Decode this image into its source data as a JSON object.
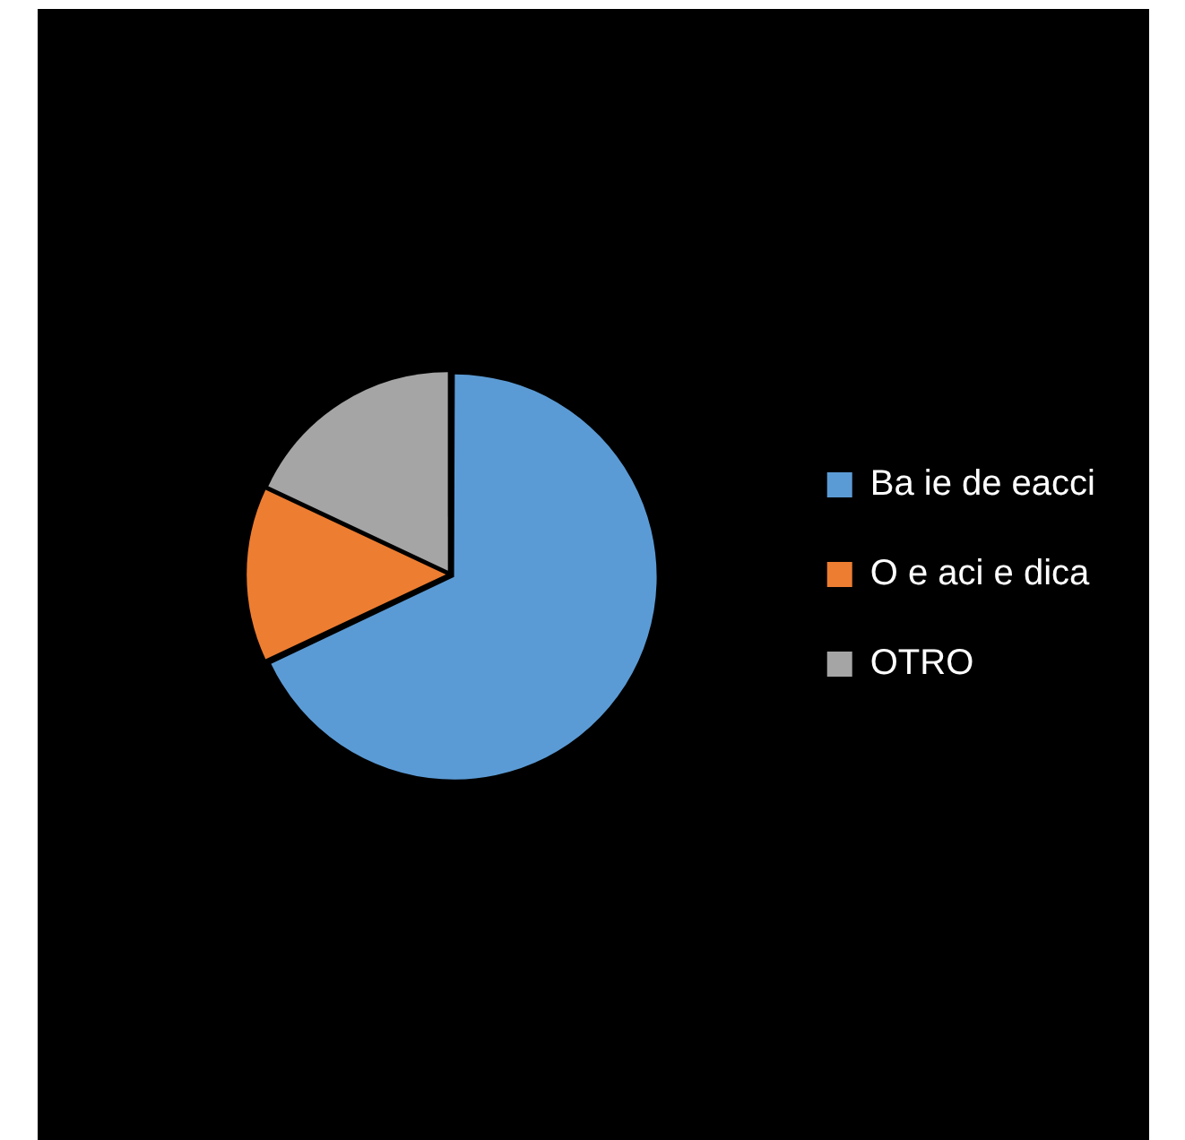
{
  "chart_data": {
    "type": "pie",
    "categories": [
      "Ba ie de eacci",
      "O e aci e dica",
      "OTRO"
    ],
    "values": [
      68,
      14,
      18
    ],
    "colors": [
      "#5b9bd5",
      "#ed7d31",
      "#a5a5a5"
    ],
    "legend": "right"
  }
}
